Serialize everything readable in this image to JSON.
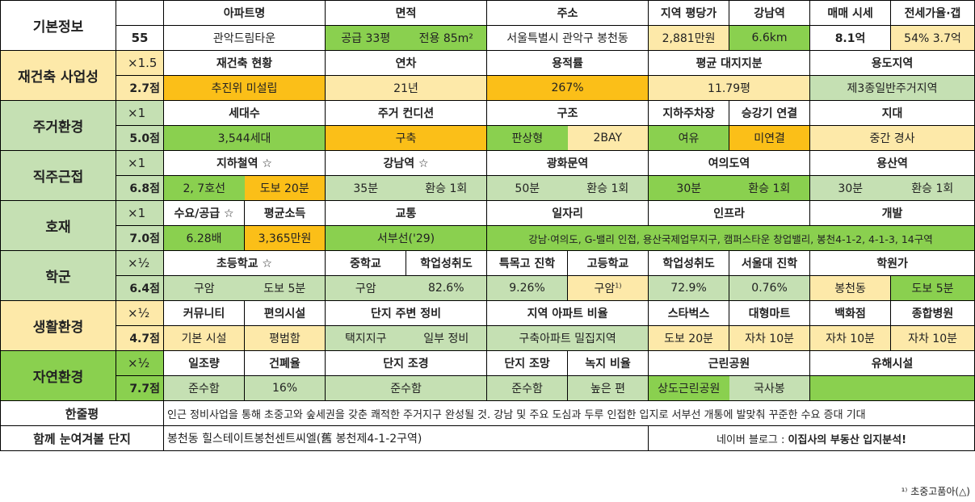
{
  "basic": {
    "label": "기본정보",
    "number": "55",
    "headers": [
      "아파트명",
      "면적",
      "주소",
      "지역 평당가",
      "강남역",
      "매매 시세",
      "전세가율·갭"
    ],
    "apt_name": "관악드림타운",
    "area_supply": "공급 33평",
    "area_exclusive": "전용 85m²",
    "address": "서울특별시 관악구 봉천동",
    "price_per_pyeong": "2,881만원",
    "gangnam_distance": "6.6km",
    "sale_price": "8.1억",
    "jeonse": "54%  3.7억"
  },
  "rebuild": {
    "label": "재건축 사업성",
    "mult": "×1.5",
    "score": "2.7점",
    "headers": [
      "재건축 현황",
      "연차",
      "용적률",
      "평균 대지지분",
      "용도지역"
    ],
    "values": [
      "추진위 미설립",
      "21년",
      "267%",
      "11.79평",
      "제3종일반주거지역"
    ]
  },
  "living": {
    "label": "주거환경",
    "mult": "×1",
    "score": "5.0점",
    "headers": [
      "세대수",
      "주거 컨디션",
      "구조",
      "지하주차장",
      "승강기 연결",
      "지대"
    ],
    "households": "3,544세대",
    "condition": "구축",
    "structure_a": "판상형",
    "structure_b": "2BAY",
    "parking": "여유",
    "elevator": "미연결",
    "terrain": "중간 경사"
  },
  "commute": {
    "label": "직주근접",
    "mult": "×1",
    "score": "6.8점",
    "headers": [
      "지하철역 ☆",
      "강남역 ☆",
      "광화문역",
      "여의도역",
      "용산역"
    ],
    "values": [
      "2, 7호선",
      "도보 20분",
      "35분",
      "환승 1회",
      "50분",
      "환승 1회",
      "30분",
      "환승 1회",
      "30분",
      "환승 1회"
    ]
  },
  "develop": {
    "label": "호재",
    "mult": "×1",
    "score": "7.0점",
    "headers": [
      "수요/공급 ☆",
      "평균소득",
      "교통",
      "일자리",
      "인프라",
      "개발"
    ],
    "demand": "6.28배",
    "income": "3,365만원",
    "traffic": "서부선('29)",
    "jobs_infra": "강남·여의도, G-밸리 인접, 용산국제업무지구, 캠퍼스타운 창업밸리, 봉천4-1-2, 4-1-3, 14구역"
  },
  "school": {
    "label": "학군",
    "mult": "×½",
    "score": "6.4점",
    "headers": [
      "초등학교 ☆",
      "중학교",
      "학업성취도",
      "특목고 진학",
      "고등학교",
      "학업성취도",
      "서울대 진학",
      "학원가"
    ],
    "elem_a": "구암",
    "elem_b": "도보 5분",
    "middle": "구암",
    "mid_score": "82.6%",
    "special": "9.26%",
    "high": "구암",
    "high_note_mark": "1)",
    "high_score": "72.9%",
    "snu": "0.76%",
    "academy_a": "봉천동",
    "academy_b": "도보 5분"
  },
  "life": {
    "label": "생활환경",
    "mult": "×½",
    "score": "4.7점",
    "headers": [
      "커뮤니티",
      "편의시설",
      "단지 주변 정비",
      "지역 아파트 비율",
      "스타벅스",
      "대형마트",
      "백화점",
      "종합병원"
    ],
    "values": [
      "기본 시설",
      "평범함",
      "택지지구",
      "일부 정비",
      "구축아파트 밀집지역",
      "도보 20분",
      "자차 10분",
      "자차 10분",
      "자차 10분"
    ]
  },
  "nature": {
    "label": "자연환경",
    "mult": "×½",
    "score": "7.7점",
    "headers": [
      "일조량",
      "건폐율",
      "단지 조경",
      "단지 조망",
      "녹지 비율",
      "근린공원",
      "유해시설"
    ],
    "values": [
      "준수함",
      "16%",
      "준수함",
      "준수함",
      "높은 편",
      "상도근린공원",
      "국사봉",
      ""
    ]
  },
  "summary": {
    "label": "한줄평",
    "text": "인근 정비사업을 통해 초중고와 숲세권을 갖춘 쾌적한 주거지구 완성될 것. 강남 및 주요 도심과 두루 인접한 입지로 서부선 개통에 발맞춰 꾸준한 수요 증대 기대"
  },
  "related": {
    "label": "함께 눈여겨볼 단지",
    "text": "봉천동 힐스테이트봉천센트씨엘(舊 봉천제4-1-2구역)",
    "blog_prefix": "네이버 블로그 : ",
    "blog_name": "이집사의 부동산 입지분석!"
  },
  "footnote": "¹⁾ 초중고품아(△)"
}
